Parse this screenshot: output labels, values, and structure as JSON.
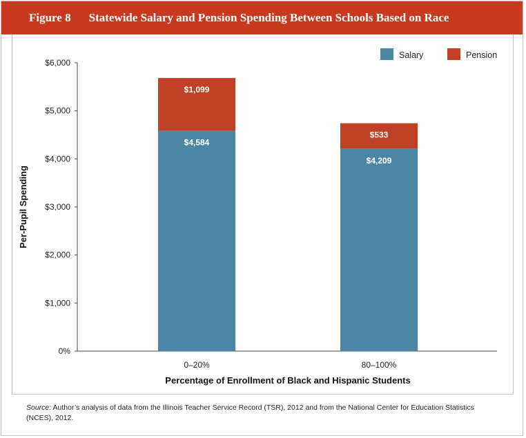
{
  "figure": {
    "number": "Figure 8",
    "title": "Statewide Salary and Pension Spending Between Schools Based on Race"
  },
  "colors": {
    "banner": "#c8391f",
    "salary": "#4b87a4",
    "pension": "#bf4025",
    "border": "#c9c2b4"
  },
  "chart_data": {
    "type": "bar",
    "stacked": true,
    "categories": [
      "0–20%",
      "80–100%"
    ],
    "series": [
      {
        "name": "Salary",
        "values": [
          4584,
          4209
        ],
        "labels": [
          "$4,584",
          "$4,209"
        ]
      },
      {
        "name": "Pension",
        "values": [
          1099,
          533
        ],
        "labels": [
          "$1,099",
          "$533"
        ]
      }
    ],
    "xlabel": "Percentage of Enrollment of Black and Hispanic Students",
    "ylabel": "Per-Pupil Spending",
    "ylim": [
      0,
      6000
    ],
    "yticks": [
      0,
      1000,
      2000,
      3000,
      4000,
      5000,
      6000
    ],
    "ytick_labels": [
      "0%",
      "$1,000",
      "$2,000",
      "$3,000",
      "$4,000",
      "$5,000",
      "$6,000"
    ],
    "legend_position": "top-right",
    "grid": false
  },
  "source": {
    "label": "Source:",
    "text": " Author’s analysis of data from the Illinois Teacher Service Record (TSR), 2012 and from the National Center for Education Statistics (NCES), 2012."
  }
}
